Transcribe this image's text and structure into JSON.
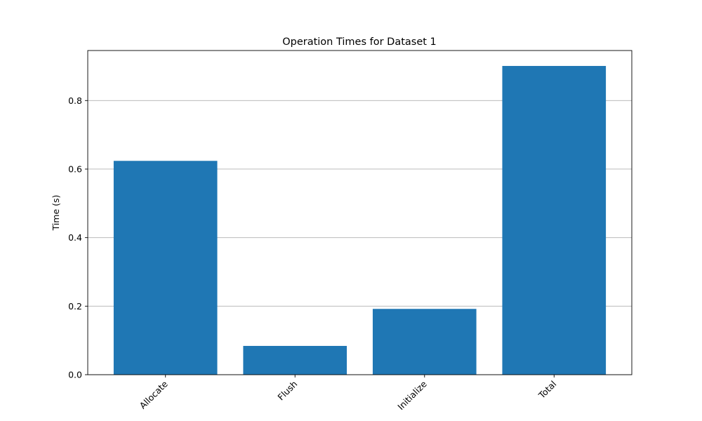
{
  "chart_data": {
    "type": "bar",
    "title": "Operation Times for Dataset 1",
    "xlabel": "",
    "ylabel": "Time (s)",
    "categories": [
      "Allocate",
      "Flush",
      "Initialize",
      "Total"
    ],
    "values": [
      0.624,
      0.084,
      0.192,
      0.901
    ],
    "ylim": [
      0,
      0.946
    ],
    "yticks": [
      0.0,
      0.2,
      0.4,
      0.6,
      0.8
    ],
    "ytick_labels": [
      "0.0",
      "0.2",
      "0.4",
      "0.6",
      "0.8"
    ],
    "grid": {
      "x": false,
      "y": true
    },
    "xtick_rotation_deg": 45,
    "bar_color": "#1f77b4",
    "grid_color": "#b0b0b0"
  }
}
